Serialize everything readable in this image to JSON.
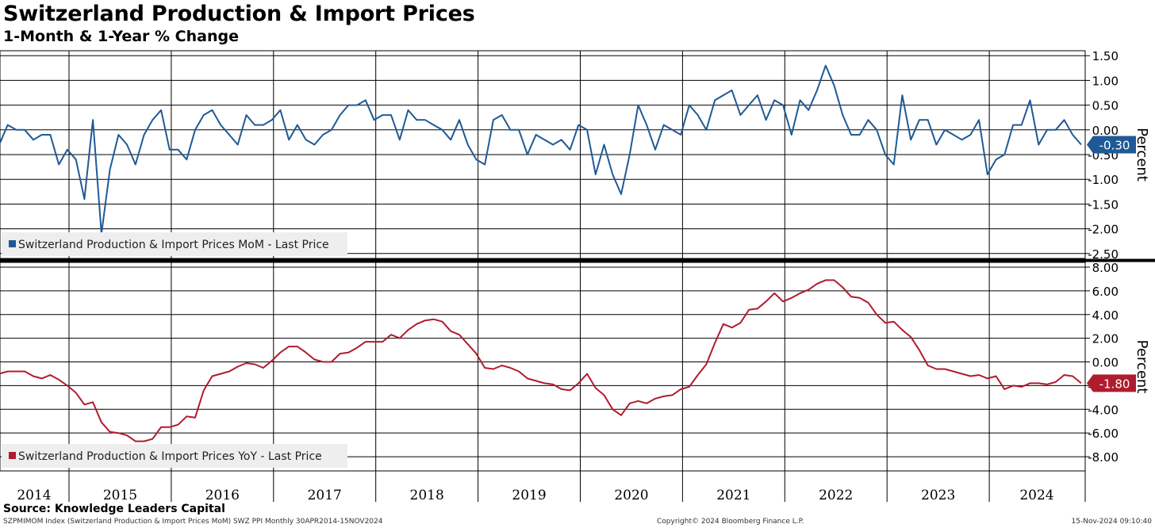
{
  "header": {
    "title": "Switzerland Production & Import Prices",
    "subtitle": "1-Month & 1-Year % Change"
  },
  "footer": {
    "source": "Source: Knowledge Leaders Capital",
    "index_info": "SZPMIMOM Index (Switzerland Production & Import Prices MoM) SWZ PPI  Monthly 30APR2014-15NOV2024",
    "copyright": "Copyright© 2024 Bloomberg Finance L.P.",
    "timestamp": "15-Nov-2024 09:10:40"
  },
  "colors": {
    "mom_line": "#1f5a96",
    "yoy_line": "#b01c2e",
    "grid": "#000000",
    "legend_bg": "#eeeeee"
  },
  "chart_data": [
    {
      "type": "line",
      "title": "",
      "ylabel": "Percent",
      "ylim": [
        -2.6,
        1.6
      ],
      "yticks": [
        "1.50",
        "1.00",
        "0.50",
        "0.00",
        "-0.50",
        "-1.00",
        "-1.50",
        "-2.00",
        "-2.50"
      ],
      "ytick_values": [
        1.5,
        1.0,
        0.5,
        0.0,
        -0.5,
        -1.0,
        -1.5,
        -2.0,
        -2.5
      ],
      "x_start": "2014-04",
      "last_value_label": "-0.30",
      "legend_position": "bottom-left",
      "series": [
        {
          "name": "Switzerland Production & Import Prices MoM - Last Price",
          "values": [
            -0.3,
            0.1,
            0.0,
            0.0,
            -0.2,
            -0.1,
            -0.1,
            -0.7,
            -0.4,
            -0.6,
            -1.4,
            0.2,
            -2.1,
            -0.8,
            -0.1,
            -0.3,
            -0.7,
            -0.1,
            0.2,
            0.4,
            -0.4,
            -0.4,
            -0.6,
            0.0,
            0.3,
            0.4,
            0.1,
            -0.1,
            -0.3,
            0.3,
            0.1,
            0.1,
            0.2,
            0.4,
            -0.2,
            0.1,
            -0.2,
            -0.3,
            -0.1,
            0.0,
            0.3,
            0.5,
            0.5,
            0.6,
            0.2,
            0.3,
            0.3,
            -0.2,
            0.4,
            0.2,
            0.2,
            0.1,
            0.0,
            -0.2,
            0.2,
            -0.3,
            -0.6,
            -0.7,
            0.2,
            0.3,
            0.0,
            0.0,
            -0.5,
            -0.1,
            -0.2,
            -0.3,
            -0.2,
            -0.4,
            0.1,
            0.0,
            -0.9,
            -0.3,
            -0.9,
            -1.3,
            -0.5,
            0.5,
            0.1,
            -0.4,
            0.1,
            0.0,
            -0.1,
            0.5,
            0.3,
            0.0,
            0.6,
            0.7,
            0.8,
            0.3,
            0.5,
            0.7,
            0.2,
            0.6,
            0.5,
            -0.1,
            0.6,
            0.4,
            0.8,
            1.3,
            0.9,
            0.3,
            -0.1,
            -0.1,
            0.2,
            0.0,
            -0.5,
            -0.7,
            0.7,
            -0.2,
            0.2,
            0.2,
            -0.3,
            0.0,
            -0.1,
            -0.2,
            -0.1,
            0.2,
            -0.9,
            -0.6,
            -0.5,
            0.1,
            0.1,
            0.6,
            -0.3,
            0.0,
            0.0,
            0.2,
            -0.1,
            -0.3
          ]
        }
      ]
    },
    {
      "type": "line",
      "title": "",
      "ylabel": "Percent",
      "ylim": [
        -9.2,
        8.4
      ],
      "yticks": [
        "8.00",
        "6.00",
        "4.00",
        "2.00",
        "0.00",
        "-2.00",
        "-4.00",
        "-6.00",
        "-8.00"
      ],
      "ytick_values": [
        8,
        6,
        4,
        2,
        0,
        -2,
        -4,
        -6,
        -8
      ],
      "x_start": "2014-04",
      "last_value_label": "-1.80",
      "legend_position": "bottom-left",
      "x_tick_labels": [
        "2014",
        "2015",
        "2016",
        "2017",
        "2018",
        "2019",
        "2020",
        "2021",
        "2022",
        "2023",
        "2024"
      ],
      "series": [
        {
          "name": "Switzerland Production & Import Prices YoY - Last Price",
          "values": [
            -1.0,
            -0.8,
            -0.8,
            -0.8,
            -1.2,
            -1.4,
            -1.1,
            -1.5,
            -2.0,
            -2.6,
            -3.6,
            -3.4,
            -5.1,
            -5.9,
            -6.0,
            -6.2,
            -6.7,
            -6.7,
            -6.5,
            -5.5,
            -5.5,
            -5.3,
            -4.6,
            -4.7,
            -2.4,
            -1.2,
            -1.0,
            -0.8,
            -0.4,
            -0.1,
            -0.2,
            -0.5,
            0.1,
            0.8,
            1.3,
            1.3,
            0.8,
            0.2,
            0.0,
            0.0,
            0.7,
            0.8,
            1.2,
            1.7,
            1.7,
            1.7,
            2.3,
            2.0,
            2.7,
            3.2,
            3.5,
            3.6,
            3.4,
            2.6,
            2.3,
            1.5,
            0.7,
            -0.5,
            -0.6,
            -0.3,
            -0.5,
            -0.8,
            -1.4,
            -1.6,
            -1.8,
            -1.9,
            -2.3,
            -2.4,
            -1.8,
            -1.0,
            -2.2,
            -2.8,
            -4.0,
            -4.5,
            -3.5,
            -3.3,
            -3.5,
            -3.1,
            -2.9,
            -2.8,
            -2.3,
            -2.1,
            -1.1,
            -0.2,
            1.6,
            3.2,
            2.9,
            3.3,
            4.4,
            4.5,
            5.1,
            5.8,
            5.1,
            5.4,
            5.8,
            6.1,
            6.6,
            6.9,
            6.9,
            6.3,
            5.5,
            5.4,
            5.0,
            4.0,
            3.3,
            3.4,
            2.7,
            2.1,
            1.0,
            -0.3,
            -0.6,
            -0.6,
            -0.8,
            -1.0,
            -1.2,
            -1.1,
            -1.4,
            -1.2,
            -2.3,
            -2.0,
            -2.1,
            -1.8,
            -1.8,
            -1.9,
            -1.7,
            -1.1,
            -1.2,
            -1.8
          ]
        }
      ]
    }
  ]
}
